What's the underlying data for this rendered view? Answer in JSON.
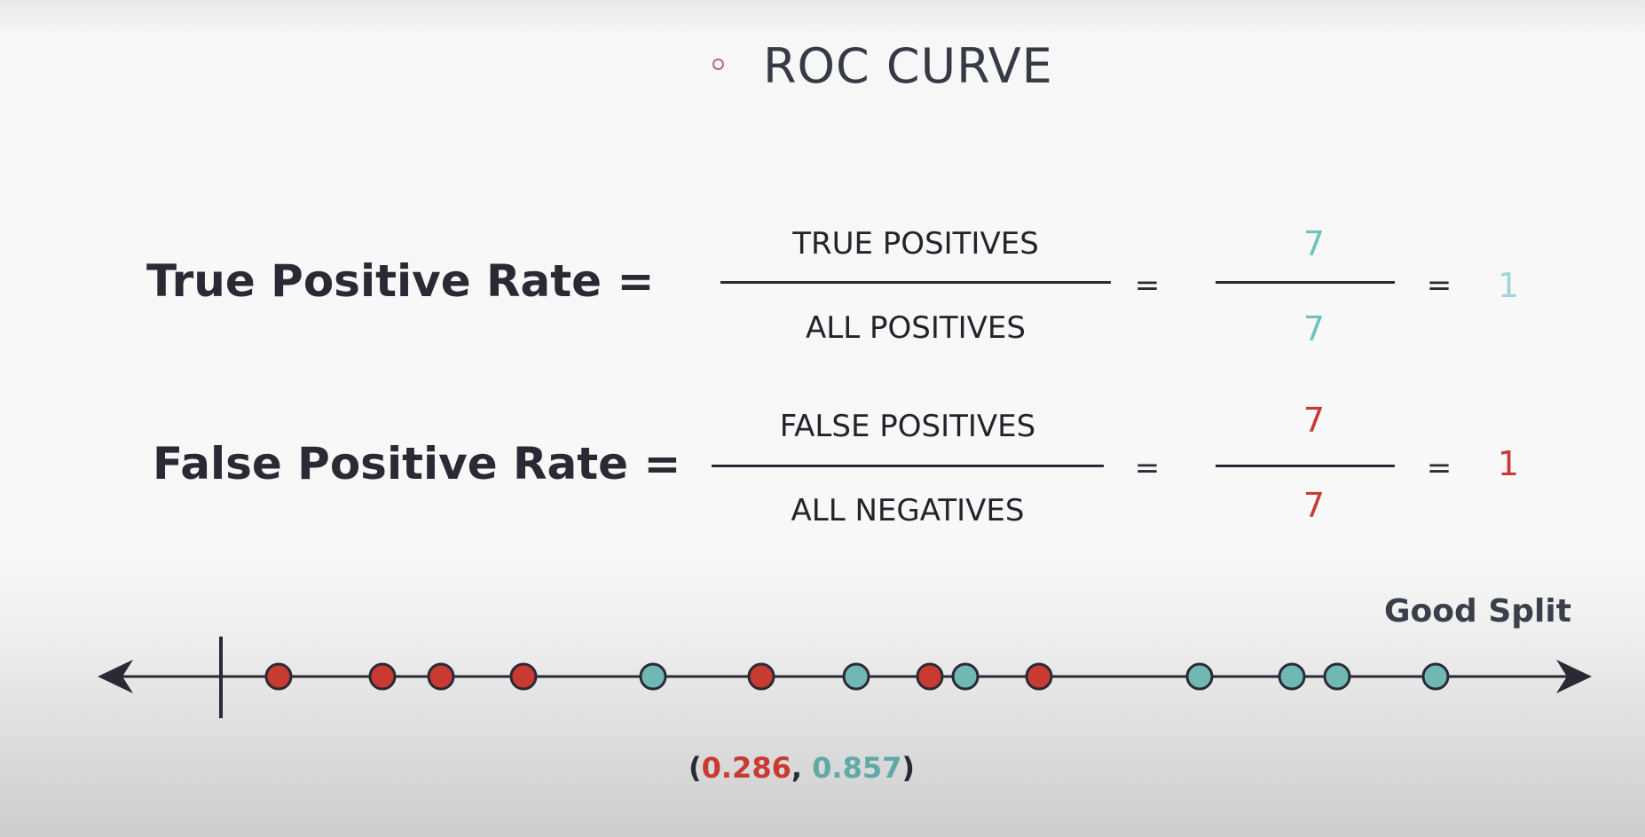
{
  "title": "ROC CURVE",
  "tpr": {
    "label": "True Positive Rate =",
    "numerator_word": "TRUE POSITIVES",
    "denominator_word": "ALL POSITIVES",
    "eq1": "=",
    "numerator": "7",
    "denominator": "7",
    "eq2": "=",
    "result": "1"
  },
  "fpr": {
    "label": "False Positive Rate =",
    "numerator_word": "FALSE POSITIVES",
    "denominator_word": "ALL NEGATIVES",
    "eq1": "=",
    "numerator": "7",
    "denominator": "7",
    "eq2": "=",
    "result": "1"
  },
  "split_label": "Good Split",
  "coordinate": {
    "open": "(",
    "fpr_value": "0.286",
    "sep": ", ",
    "tpr_value": "0.857",
    "close": ")"
  },
  "colors": {
    "red": "#c83a32",
    "teal": "#6fb8b4",
    "line": "#2a2a35"
  },
  "points": [
    {
      "pos": 0,
      "class": "negative"
    },
    {
      "pos": 1,
      "class": "negative"
    },
    {
      "pos": 2,
      "class": "negative"
    },
    {
      "pos": 3,
      "class": "negative"
    },
    {
      "pos": 4,
      "class": "positive"
    },
    {
      "pos": 5,
      "class": "negative"
    },
    {
      "pos": 6,
      "class": "positive"
    },
    {
      "pos": 7,
      "class": "negative"
    },
    {
      "pos": 8,
      "class": "positive"
    },
    {
      "pos": 9,
      "class": "negative"
    },
    {
      "pos": 10,
      "class": "positive"
    },
    {
      "pos": 11,
      "class": "positive"
    },
    {
      "pos": 12,
      "class": "positive"
    },
    {
      "pos": 13,
      "class": "positive"
    }
  ]
}
